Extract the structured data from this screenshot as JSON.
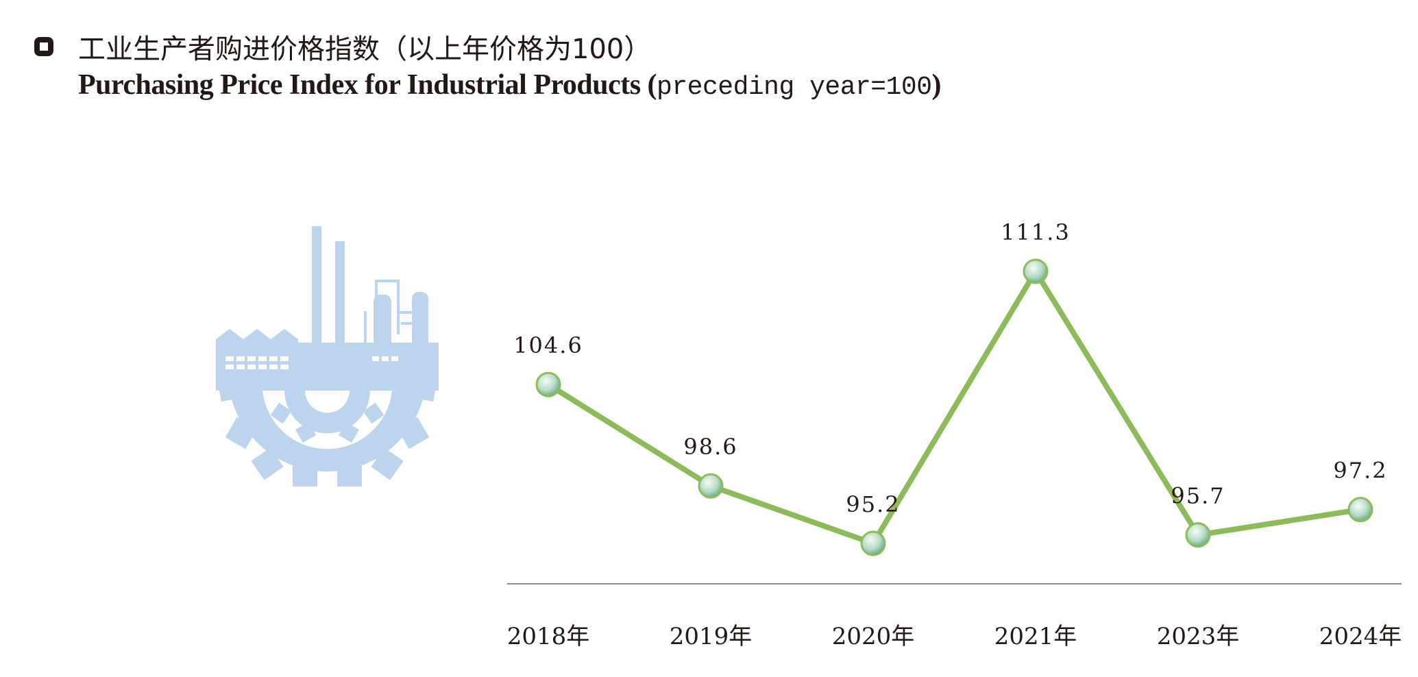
{
  "header": {
    "title_cn": "工业生产者购进价格指数（以上年价格为100）",
    "title_en_main": "Purchasing Price Index for Industrial Products (",
    "title_en_mono": "preceding year=100",
    "title_en_close": ")"
  },
  "icons": {
    "bullet": "square-outline-icon",
    "illustration": "factory-gear-icon"
  },
  "colors": {
    "line": "#8dbb5a",
    "marker_fill": "#b9dcc8",
    "icon": "#bcd5ec",
    "axis": "#8a8a8a",
    "text": "#231815"
  },
  "chart_data": {
    "type": "line",
    "categories": [
      "2018年",
      "2019年",
      "2020年",
      "2021年",
      "2023年",
      "2024年"
    ],
    "values": [
      104.6,
      98.6,
      95.2,
      111.3,
      95.7,
      97.2
    ],
    "value_labels": [
      "104.6",
      "98.6",
      "95.2",
      "111.3",
      "95.7",
      "97.2"
    ],
    "title": "工业生产者购进价格指数（以上年价格为100）",
    "subtitle": "Purchasing Price Index for Industrial Products (preceding year=100)",
    "xlabel": "",
    "ylabel": "",
    "grid": false,
    "legend": "none"
  }
}
